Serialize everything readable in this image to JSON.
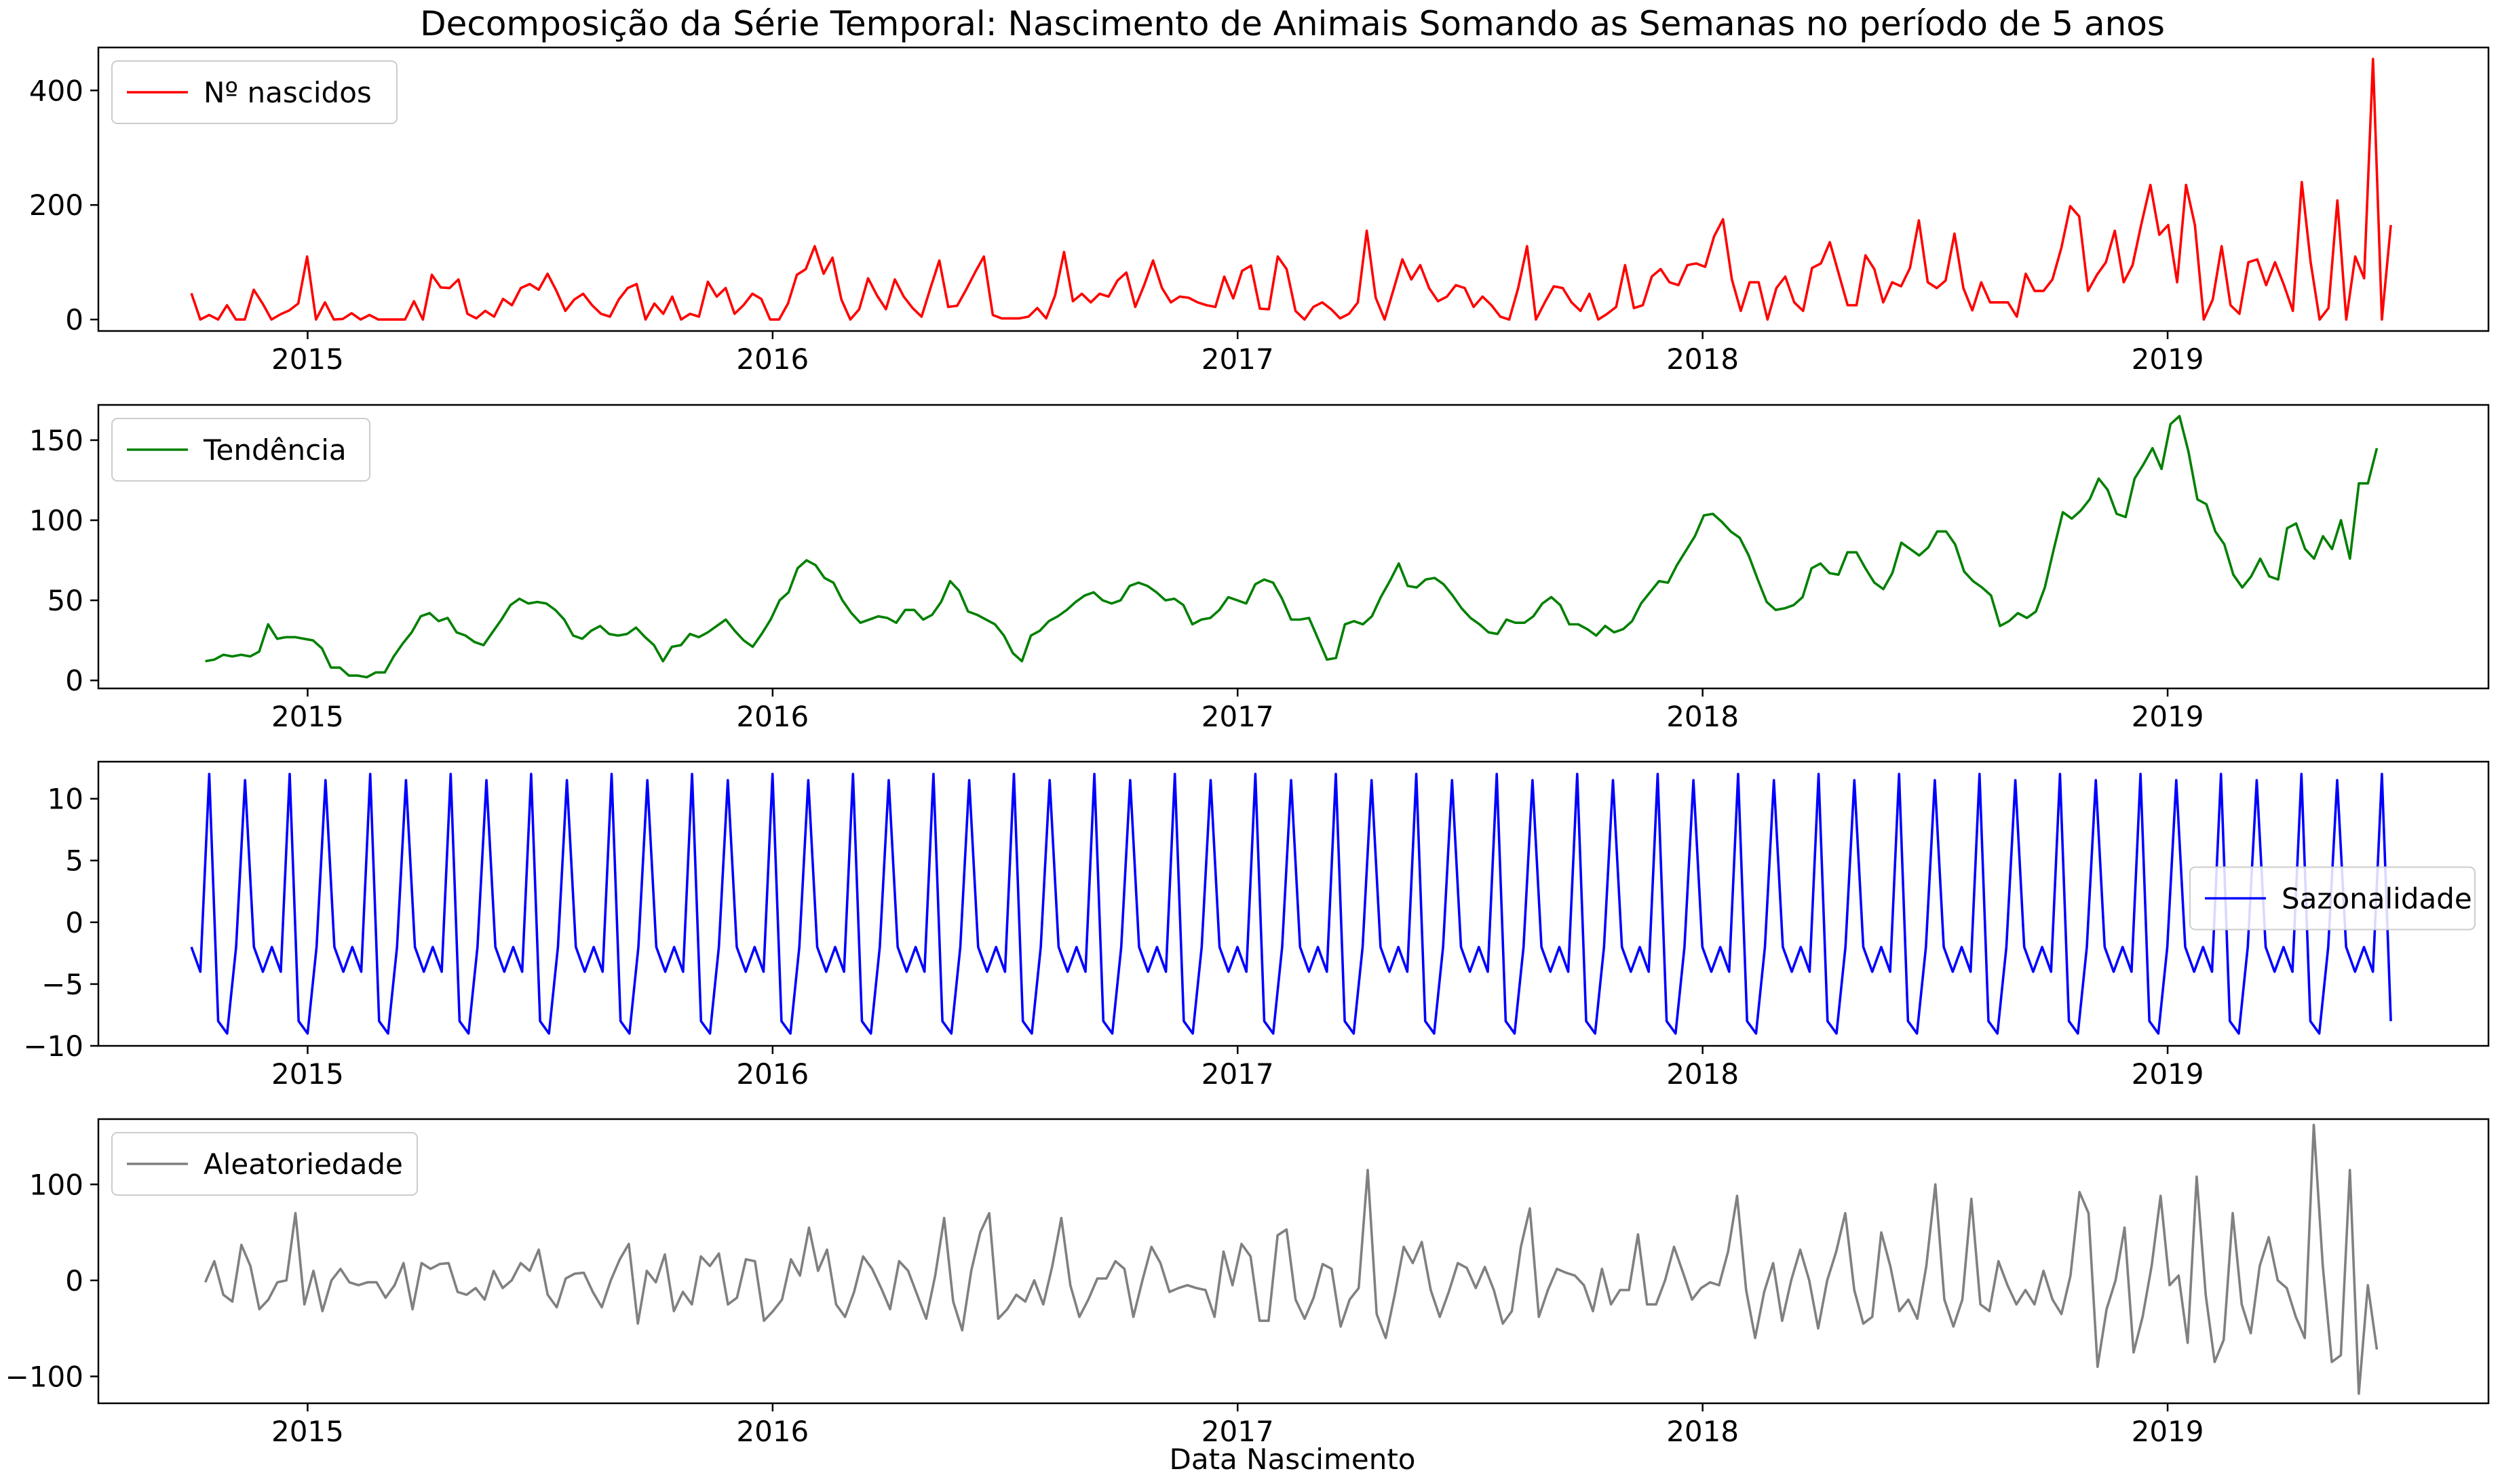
{
  "figure": {
    "title": "Decomposição da Série Temporal: Nascimento de Animais Somando as Semanas no período de 5 anos",
    "xlabel": "Data Nascimento"
  },
  "chart_data": [
    {
      "type": "line",
      "legend": "Nº nascidos",
      "legend_loc": "upper-left",
      "color": "#ff0000",
      "xticks": [
        2015,
        2016,
        2017,
        2018,
        2019
      ],
      "xlim": [
        2014.55,
        2019.69
      ],
      "x_start": 2014.75,
      "x_end": 2019.48,
      "yticks": [
        0,
        200,
        400
      ],
      "ylim": [
        -20,
        475
      ],
      "values": [
        46,
        0,
        8,
        0,
        25,
        0,
        0,
        52,
        28,
        0,
        9,
        16,
        28,
        110,
        0,
        30,
        0,
        1,
        11,
        0,
        8,
        0,
        0,
        0,
        0,
        32,
        0,
        78,
        56,
        55,
        70,
        10,
        2,
        15,
        5,
        36,
        25,
        55,
        62,
        52,
        80,
        50,
        15,
        35,
        45,
        25,
        10,
        5,
        35,
        55,
        62,
        0,
        28,
        10,
        40,
        0,
        10,
        5,
        66,
        40,
        55,
        10,
        25,
        45,
        36,
        0,
        0,
        28,
        78,
        88,
        128,
        80,
        108,
        35,
        0,
        18,
        72,
        42,
        18,
        70,
        40,
        20,
        5,
        55,
        103,
        22,
        24,
        52,
        82,
        110,
        8,
        2,
        2,
        2,
        5,
        20,
        2,
        42,
        118,
        32,
        45,
        30,
        45,
        40,
        68,
        82,
        22,
        60,
        103,
        55,
        30,
        40,
        38,
        30,
        25,
        22,
        75,
        37,
        85,
        94,
        19,
        18,
        110,
        88,
        15,
        0,
        22,
        30,
        18,
        2,
        10,
        30,
        155,
        38,
        0,
        52,
        105,
        70,
        95,
        55,
        32,
        40,
        60,
        55,
        22,
        40,
        25,
        5,
        0,
        55,
        128,
        0,
        30,
        58,
        55,
        30,
        15,
        45,
        0,
        10,
        22,
        95,
        20,
        25,
        75,
        88,
        65,
        60,
        95,
        98,
        92,
        145,
        175,
        70,
        15,
        65,
        65,
        0,
        55,
        75,
        30,
        15,
        90,
        98,
        135,
        80,
        25,
        25,
        112,
        88,
        30,
        65,
        58,
        90,
        173,
        65,
        55,
        68,
        150,
        55,
        16,
        65,
        30,
        30,
        30,
        5,
        80,
        50,
        50,
        70,
        125,
        198,
        180,
        50,
        78,
        100,
        155,
        65,
        95,
        168,
        235,
        148,
        165,
        65,
        235,
        165,
        0,
        35,
        128,
        25,
        10,
        100,
        105,
        60,
        100,
        60,
        15,
        240,
        100,
        0,
        20,
        208,
        0,
        110,
        72,
        455,
        0,
        165
      ]
    },
    {
      "type": "line",
      "legend": "Tendência",
      "legend_loc": "upper-left",
      "color": "#008000",
      "xticks": [
        2015,
        2016,
        2017,
        2018,
        2019
      ],
      "xlim": [
        2014.55,
        2019.69
      ],
      "x_start": 2014.78,
      "x_end": 2019.45,
      "yticks": [
        0,
        50,
        100,
        150
      ],
      "ylim": [
        -5,
        172
      ],
      "values": [
        12,
        13,
        16,
        15,
        16,
        15,
        18,
        35,
        26,
        27,
        27,
        26,
        25,
        20,
        8,
        8,
        3,
        3,
        2,
        5,
        5,
        15,
        23,
        30,
        40,
        42,
        37,
        39,
        30,
        28,
        24,
        22,
        30,
        38,
        47,
        51,
        48,
        49,
        48,
        44,
        38,
        28,
        26,
        31,
        34,
        29,
        28,
        29,
        33,
        27,
        22,
        12,
        21,
        22,
        29,
        27,
        30,
        34,
        38,
        31,
        25,
        21,
        29,
        38,
        50,
        55,
        70,
        75,
        72,
        64,
        61,
        50,
        42,
        36,
        38,
        40,
        39,
        36,
        44,
        44,
        38,
        41,
        49,
        62,
        56,
        43,
        41,
        38,
        35,
        28,
        17,
        12,
        28,
        31,
        37,
        40,
        44,
        49,
        53,
        55,
        50,
        48,
        50,
        59,
        61,
        59,
        55,
        50,
        51,
        47,
        35,
        38,
        39,
        44,
        52,
        50,
        48,
        60,
        63,
        61,
        51,
        38,
        38,
        39,
        26,
        13,
        14,
        35,
        37,
        35,
        40,
        52,
        62,
        73,
        59,
        58,
        63,
        64,
        60,
        53,
        45,
        39,
        35,
        30,
        29,
        38,
        36,
        36,
        40,
        48,
        52,
        47,
        35,
        35,
        32,
        28,
        34,
        30,
        32,
        37,
        48,
        55,
        62,
        61,
        72,
        81,
        90,
        103,
        104,
        99,
        93,
        89,
        78,
        63,
        49,
        44,
        45,
        47,
        52,
        70,
        73,
        67,
        66,
        80,
        80,
        70,
        61,
        57,
        67,
        86,
        82,
        78,
        83,
        93,
        93,
        85,
        68,
        62,
        58,
        53,
        34,
        37,
        42,
        39,
        43,
        58,
        82,
        105,
        101,
        106,
        113,
        126,
        119,
        104,
        102,
        126,
        135,
        145,
        132,
        160,
        165,
        143,
        113,
        110,
        93,
        85,
        66,
        58,
        65,
        76,
        65,
        63,
        95,
        98,
        82,
        76,
        90,
        82,
        100,
        76,
        123,
        123,
        145
      ]
    },
    {
      "type": "line",
      "legend": "Sazonalidade",
      "legend_loc": "center-right",
      "color": "#0000ff",
      "xticks": [
        2015,
        2016,
        2017,
        2018,
        2019
      ],
      "xlim": [
        2014.55,
        2019.69
      ],
      "x_start": 2014.75,
      "x_end": 2019.48,
      "yticks": [
        -10,
        -5,
        0,
        5,
        10
      ],
      "ylim": [
        -10,
        13
      ],
      "pattern": [
        -2,
        -4,
        12,
        -8,
        -9,
        -2,
        11.5,
        -2,
        -4
      ],
      "num_points": 247
    },
    {
      "type": "line",
      "legend": "Aleatoriedade",
      "legend_loc": "upper-left",
      "color": "#808080",
      "xticks": [
        2015,
        2016,
        2017,
        2018,
        2019
      ],
      "xlim": [
        2014.55,
        2019.69
      ],
      "x_start": 2014.78,
      "x_end": 2019.45,
      "yticks": [
        -100,
        0,
        100
      ],
      "ylim": [
        -128,
        168
      ],
      "values": [
        -2,
        20,
        -15,
        -22,
        37,
        15,
        -30,
        -20,
        -2,
        0,
        70,
        -25,
        10,
        -32,
        0,
        12,
        -2,
        -5,
        -2,
        -2,
        -18,
        -5,
        18,
        -30,
        18,
        12,
        17,
        18,
        -12,
        -15,
        -8,
        -20,
        10,
        -8,
        0,
        18,
        10,
        32,
        -15,
        -28,
        2,
        7,
        8,
        -12,
        -28,
        0,
        22,
        38,
        -45,
        10,
        -2,
        27,
        -32,
        -12,
        -25,
        25,
        15,
        28,
        -25,
        -18,
        22,
        20,
        -42,
        -32,
        -20,
        22,
        5,
        55,
        10,
        32,
        -25,
        -38,
        -12,
        25,
        12,
        -8,
        -30,
        20,
        10,
        -15,
        -40,
        5,
        65,
        -22,
        -52,
        10,
        50,
        70,
        -40,
        -30,
        -15,
        -22,
        0,
        -25,
        15,
        65,
        -5,
        -38,
        -20,
        2,
        2,
        20,
        12,
        -38,
        0,
        35,
        18,
        -12,
        -8,
        -5,
        -8,
        -10,
        -38,
        30,
        -5,
        38,
        25,
        -42,
        -42,
        47,
        53,
        -20,
        -40,
        -18,
        17,
        12,
        -48,
        -20,
        -8,
        115,
        -35,
        -60,
        -15,
        35,
        18,
        40,
        -10,
        -38,
        -12,
        18,
        13,
        -8,
        14,
        -10,
        -45,
        -32,
        35,
        75,
        -38,
        -10,
        12,
        8,
        5,
        -5,
        -32,
        12,
        -25,
        -10,
        -10,
        48,
        -25,
        -25,
        0,
        35,
        8,
        -20,
        -8,
        -2,
        -5,
        30,
        88,
        -10,
        -60,
        -12,
        18,
        -42,
        0,
        32,
        0,
        -50,
        0,
        30,
        70,
        -10,
        -45,
        -38,
        50,
        15,
        -32,
        -20,
        -40,
        15,
        100,
        -20,
        -48,
        -20,
        85,
        -25,
        -32,
        20,
        -5,
        -25,
        -10,
        -25,
        10,
        -20,
        -35,
        5,
        92,
        70,
        -90,
        -30,
        0,
        55,
        -75,
        -38,
        15,
        88,
        -5,
        5,
        -65,
        108,
        -15,
        -85,
        -62,
        70,
        -25,
        -55,
        15,
        45,
        0,
        -8,
        -38,
        -60,
        162,
        15,
        -85,
        -78,
        115,
        -118,
        -5,
        -72
      ]
    }
  ]
}
